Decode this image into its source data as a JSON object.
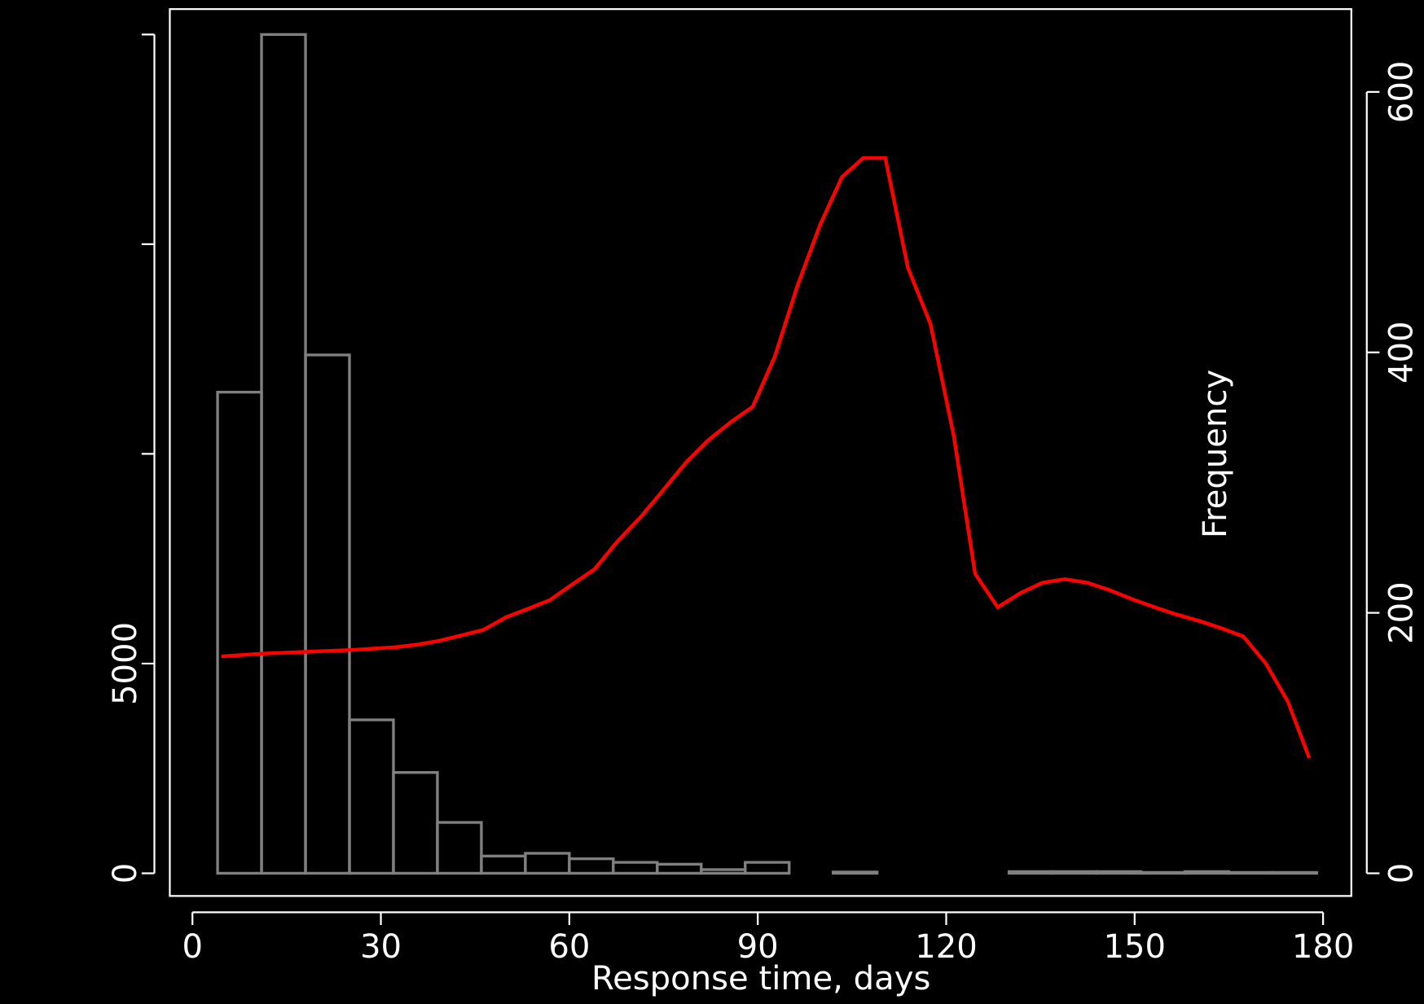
{
  "chart_data": [
    {
      "type": "histogram",
      "xlabel": "Response time, days",
      "bins": [
        4,
        11,
        18,
        25,
        32,
        39,
        46,
        53,
        60,
        67,
        74,
        81,
        88,
        95,
        102,
        109,
        116,
        123,
        130,
        137,
        144,
        151,
        158,
        165,
        172,
        179
      ],
      "values": [
        11472,
        20000,
        12359,
        3658,
        2403,
        1212,
        411,
        476,
        346,
        260,
        216,
        87,
        260,
        0,
        30,
        0,
        0,
        0,
        40,
        40,
        40,
        20,
        40,
        20,
        20
      ],
      "color": "#808080",
      "xlim": [
        -3.6,
        184.5
      ],
      "xticks": [
        0,
        30,
        60,
        90,
        120,
        150,
        180
      ],
      "ylim": [
        -541,
        20606
      ],
      "yticks": [
        0,
        5000
      ],
      "yticks_unlabeled": [
        10000,
        15000,
        20000
      ]
    },
    {
      "type": "line",
      "ylabel": "Frequency",
      "x": [
        4.6,
        11.1,
        18.1,
        25.3,
        32.2,
        35.9,
        39.2,
        42.8,
        46.3,
        49.9,
        53.3,
        56.9,
        60.4,
        64.0,
        67.7,
        71.3,
        74.7,
        78.5,
        82.1,
        85.7,
        89.2,
        92.7,
        96.3,
        99.9,
        103.4,
        106.8,
        110.3,
        113.9,
        117.5,
        121.2,
        124.6,
        128.2,
        131.9,
        135.3,
        138.9,
        142.5,
        146.0,
        149.6,
        153.2,
        156.7,
        160.3,
        163.8,
        167.3,
        170.9,
        174.4,
        177.8
      ],
      "values": [
        166.6,
        168.7,
        170.1,
        171.5,
        173.6,
        175.7,
        178.5,
        182.7,
        186.9,
        196.6,
        202.9,
        209.8,
        221.7,
        233.5,
        255.1,
        273.3,
        292.8,
        315.1,
        332.5,
        346.5,
        358.3,
        396.7,
        451.0,
        497.7,
        534.7,
        549.3,
        549.3,
        465.0,
        421.7,
        336.0,
        230.0,
        204.3,
        215.4,
        223.1,
        225.9,
        223.1,
        217.5,
        210.5,
        204.3,
        198.7,
        193.8,
        188.2,
        181.9,
        161.0,
        131.8,
        88.5
      ],
      "color": "#ff0000",
      "y2lim": [
        -17.4,
        663.6
      ],
      "y2ticks": [
        0,
        200,
        400,
        600
      ]
    }
  ]
}
